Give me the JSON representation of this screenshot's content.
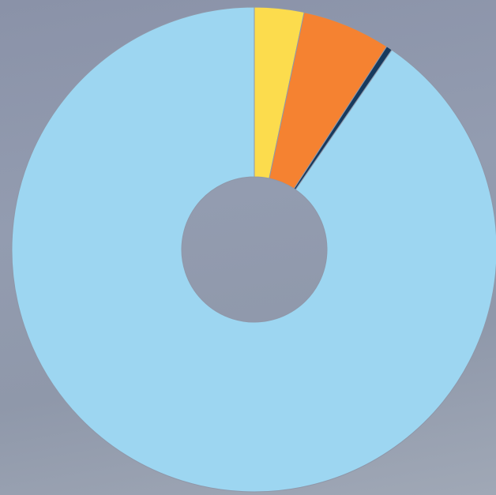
{
  "chart_data": {
    "type": "donut",
    "values": [
      3.3,
      5.9,
      0.4,
      90.4
    ],
    "colors": [
      "#fcdc4d",
      "#f58231",
      "#173a5e",
      "#9dd6f1"
    ]
  }
}
